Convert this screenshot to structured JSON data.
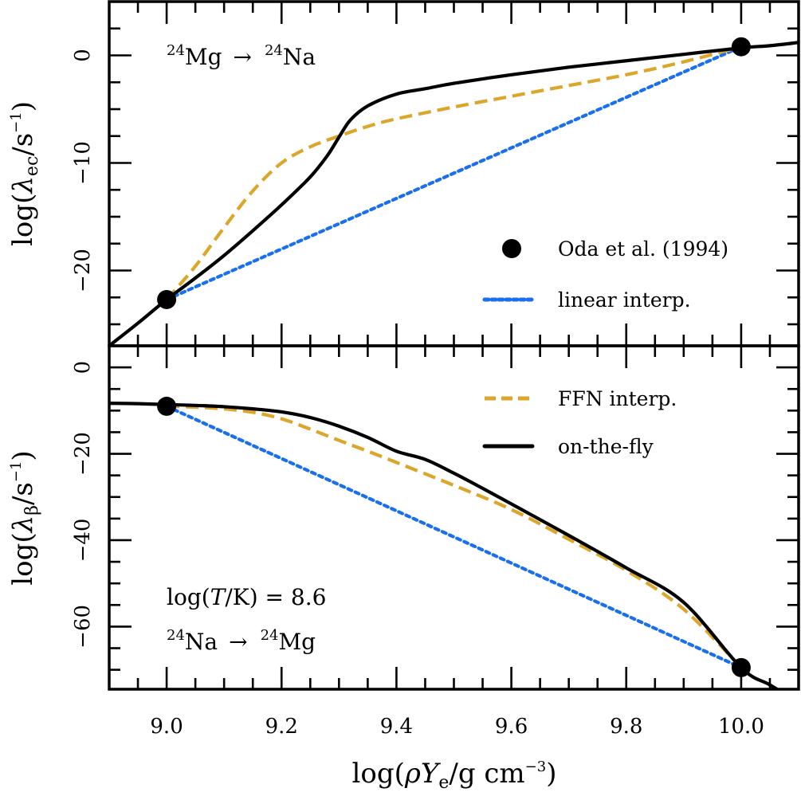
{
  "chart_data": [
    {
      "type": "line",
      "panel": "top",
      "annotation": {
        "isotope_from_mass": "24",
        "isotope_from": "Mg",
        "arrow": "→",
        "isotope_to_mass": "24",
        "isotope_to": "Na"
      },
      "ylabel": {
        "prefix": "log(",
        "symbol": "λ",
        "subscript": "ec",
        "mid": "/s",
        "superscript": "−1",
        "suffix": ")"
      },
      "xlim": [
        8.9,
        10.1
      ],
      "ylim": [
        -27,
        5
      ],
      "yticks_major": [
        0,
        -10,
        -20
      ],
      "ytick_labels": [
        "0",
        "−10",
        "−20"
      ],
      "yticks_minor_step": 2.5,
      "grid": false,
      "legend": {
        "placement": "lower-right",
        "entries": [
          {
            "label": "Oda et al. (1994)",
            "style": "marker",
            "color": "#000000"
          },
          {
            "label": "linear interp.",
            "style": "dotted",
            "color": "#1a6ff0"
          }
        ]
      },
      "series": [
        {
          "name": "on-the-fly",
          "color": "#000000",
          "style": "solid",
          "x": [
            8.9,
            8.95,
            9.0,
            9.05,
            9.1,
            9.15,
            9.2,
            9.25,
            9.28,
            9.3,
            9.32,
            9.35,
            9.4,
            9.45,
            9.5,
            9.6,
            9.7,
            9.8,
            9.9,
            10.0,
            10.05,
            10.1
          ],
          "y": [
            -27.0,
            -24.9,
            -22.7,
            -20.7,
            -18.6,
            -16.3,
            -13.9,
            -11.3,
            -9.3,
            -7.6,
            -6.0,
            -4.7,
            -3.6,
            -3.1,
            -2.6,
            -1.8,
            -1.1,
            -0.5,
            0.1,
            0.7,
            0.9,
            1.2
          ]
        },
        {
          "name": "FFN interp.",
          "color": "#dba62a",
          "style": "dashed",
          "x": [
            9.0,
            9.05,
            9.1,
            9.15,
            9.2,
            9.25,
            9.3,
            9.35,
            9.4,
            9.5,
            9.6,
            9.7,
            9.8,
            9.9,
            10.0
          ],
          "y": [
            -22.7,
            -19.6,
            -16.0,
            -12.6,
            -10.0,
            -8.5,
            -7.5,
            -6.6,
            -5.9,
            -4.8,
            -3.8,
            -2.8,
            -1.8,
            -0.6,
            0.8
          ]
        },
        {
          "name": "linear interp.",
          "color": "#1a6ff0",
          "style": "dotted",
          "x": [
            9.0,
            10.0
          ],
          "y": [
            -22.7,
            0.8
          ]
        },
        {
          "name": "Oda et al. (1994)",
          "color": "#000000",
          "style": "marker",
          "x": [
            9.0,
            10.0
          ],
          "y": [
            -22.7,
            0.8
          ]
        }
      ]
    },
    {
      "type": "line",
      "panel": "bottom",
      "annotation_temp": {
        "prefix": "log(",
        "symbol": "T",
        "mid": "/K) = ",
        "value": "8.6"
      },
      "annotation": {
        "isotope_from_mass": "24",
        "isotope_from": "Na",
        "arrow": "→",
        "isotope_to_mass": "24",
        "isotope_to": "Mg"
      },
      "ylabel": {
        "prefix": "log(",
        "symbol": "λ",
        "subscript": "β",
        "mid": "/s",
        "superscript": "−1",
        "suffix": ")"
      },
      "xlabel": {
        "prefix": "log(",
        "symbol": "ρY",
        "subscript": "e",
        "mid": "/g cm",
        "superscript": "−3",
        "suffix": ")"
      },
      "xlim": [
        8.9,
        10.1
      ],
      "ylim": [
        -74.5,
        5
      ],
      "xticks": [
        9.0,
        9.2,
        9.4,
        9.6,
        9.8,
        10.0
      ],
      "xtick_labels": [
        "9.0",
        "9.2",
        "9.4",
        "9.6",
        "9.8",
        "10.0"
      ],
      "yticks_major": [
        0,
        -20,
        -40,
        -60
      ],
      "ytick_labels": [
        "0",
        "−20",
        "−40",
        "−60"
      ],
      "yticks_minor_step": 5,
      "grid": false,
      "legend": {
        "placement": "upper-right",
        "entries": [
          {
            "label": "FFN interp.",
            "style": "dashed",
            "color": "#dba62a"
          },
          {
            "label": "on-the-fly",
            "style": "solid",
            "color": "#000000"
          }
        ]
      },
      "series": [
        {
          "name": "on-the-fly",
          "color": "#000000",
          "style": "solid",
          "x": [
            8.9,
            8.95,
            9.0,
            9.05,
            9.1,
            9.15,
            9.2,
            9.25,
            9.3,
            9.35,
            9.4,
            9.45,
            9.5,
            9.55,
            9.6,
            9.7,
            9.8,
            9.9,
            10.0,
            10.05,
            10.1
          ],
          "y": [
            -8.3,
            -8.4,
            -8.6,
            -8.8,
            -9.1,
            -9.6,
            -10.3,
            -11.6,
            -13.6,
            -16.2,
            -19.4,
            -21.3,
            -24.5,
            -28.0,
            -31.6,
            -38.9,
            -46.4,
            -54.4,
            -69.5,
            -73.5,
            -77.5
          ]
        },
        {
          "name": "FFN interp.",
          "color": "#dba62a",
          "style": "dashed",
          "x": [
            9.0,
            9.05,
            9.1,
            9.15,
            9.2,
            9.25,
            9.3,
            9.35,
            9.4,
            9.5,
            9.6,
            9.7,
            9.8,
            9.9,
            10.0
          ],
          "y": [
            -9.0,
            -9.2,
            -9.6,
            -10.4,
            -11.9,
            -14.3,
            -16.9,
            -19.4,
            -22.0,
            -27.3,
            -32.9,
            -39.8,
            -47.0,
            -56.0,
            -69.5
          ]
        },
        {
          "name": "linear interp.",
          "color": "#1a6ff0",
          "style": "dotted",
          "x": [
            9.0,
            10.0
          ],
          "y": [
            -9.0,
            -69.5
          ]
        },
        {
          "name": "Oda et al. (1994)",
          "color": "#000000",
          "style": "marker",
          "x": [
            9.0,
            10.0
          ],
          "y": [
            -9.0,
            -69.5
          ]
        }
      ]
    }
  ]
}
